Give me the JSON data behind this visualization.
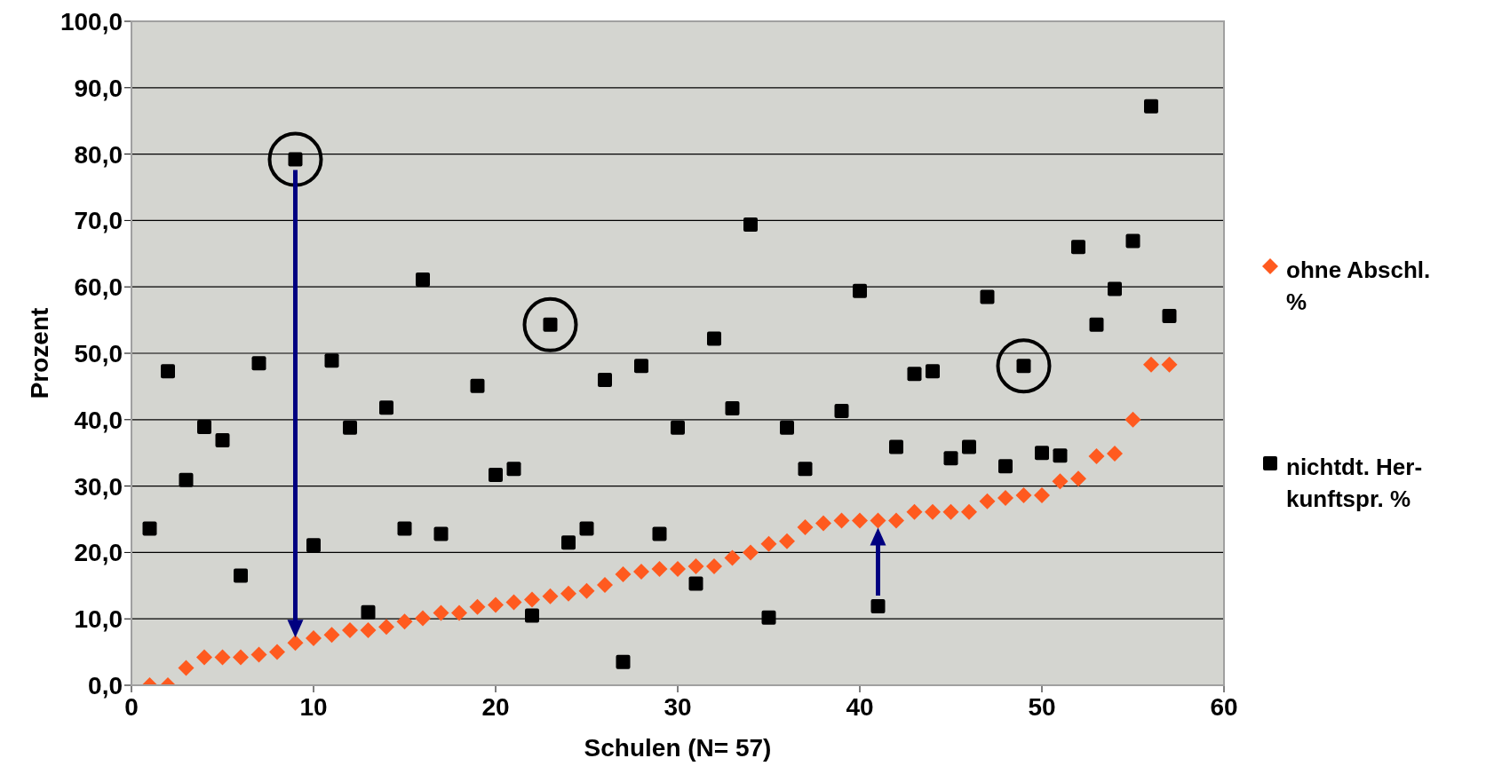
{
  "chart_data": {
    "type": "scatter",
    "xlabel": "Schulen (N= 57)",
    "ylabel": "Prozent",
    "x": [
      1,
      2,
      3,
      4,
      5,
      6,
      7,
      8,
      9,
      10,
      11,
      12,
      13,
      14,
      15,
      16,
      17,
      18,
      19,
      20,
      21,
      22,
      23,
      24,
      25,
      26,
      27,
      28,
      29,
      30,
      31,
      32,
      33,
      34,
      35,
      36,
      37,
      38,
      39,
      40,
      41,
      42,
      43,
      44,
      45,
      46,
      47,
      48,
      49,
      50,
      51,
      52,
      53,
      54,
      55,
      56,
      57
    ],
    "series": [
      {
        "name": "ohne Abschl. %",
        "color": "#ff5a1f",
        "marker": "diamond",
        "values": [
          0.0,
          0.0,
          2.6,
          4.2,
          4.2,
          4.2,
          4.6,
          5.0,
          6.4,
          7.1,
          7.6,
          8.3,
          8.3,
          8.8,
          9.6,
          10.1,
          10.9,
          10.9,
          11.8,
          12.1,
          12.5,
          12.9,
          13.4,
          13.8,
          14.2,
          15.1,
          16.7,
          17.1,
          17.5,
          17.5,
          17.9,
          17.9,
          19.2,
          20.0,
          21.3,
          21.7,
          23.8,
          24.4,
          24.8,
          24.8,
          24.8,
          24.8,
          26.1,
          26.1,
          26.1,
          26.1,
          27.7,
          28.2,
          28.6,
          28.6,
          30.7,
          31.1,
          34.5,
          34.9,
          40.0,
          48.3,
          48.3
        ]
      },
      {
        "name": "nichtdt. Her-kunftspr. %",
        "color": "#000000",
        "marker": "square",
        "values": [
          23.6,
          47.3,
          30.9,
          38.9,
          36.9,
          16.5,
          48.5,
          null,
          79.2,
          21.1,
          48.9,
          38.8,
          11.0,
          41.8,
          23.6,
          61.1,
          22.8,
          null,
          45.1,
          31.7,
          32.6,
          10.5,
          54.3,
          21.5,
          23.6,
          46.0,
          3.5,
          48.1,
          22.8,
          38.8,
          15.3,
          52.2,
          41.7,
          69.4,
          10.2,
          38.8,
          32.6,
          null,
          41.3,
          59.4,
          11.9,
          35.9,
          46.9,
          47.3,
          34.2,
          35.9,
          58.5,
          33.0,
          48.1,
          35.0,
          34.6,
          66.0,
          54.3,
          59.7,
          66.9,
          87.2,
          55.6
        ]
      }
    ],
    "xlim": [
      0,
      60
    ],
    "xticks": [
      0,
      10,
      20,
      30,
      40,
      50,
      60
    ],
    "ylim": [
      0,
      100
    ],
    "yticks": [
      {
        "value": 0,
        "label": "0,0"
      },
      {
        "value": 10,
        "label": "10,0"
      },
      {
        "value": 20,
        "label": "20,0"
      },
      {
        "value": 30,
        "label": "30,0"
      },
      {
        "value": 40,
        "label": "40,0"
      },
      {
        "value": 50,
        "label": "50,0"
      },
      {
        "value": 60,
        "label": "60,0"
      },
      {
        "value": 70,
        "label": "70,0"
      },
      {
        "value": 80,
        "label": "80,0"
      },
      {
        "value": 90,
        "label": "90,0"
      },
      {
        "value": 100,
        "label": "100,0"
      }
    ],
    "grid": "y",
    "legend": "right"
  }
}
